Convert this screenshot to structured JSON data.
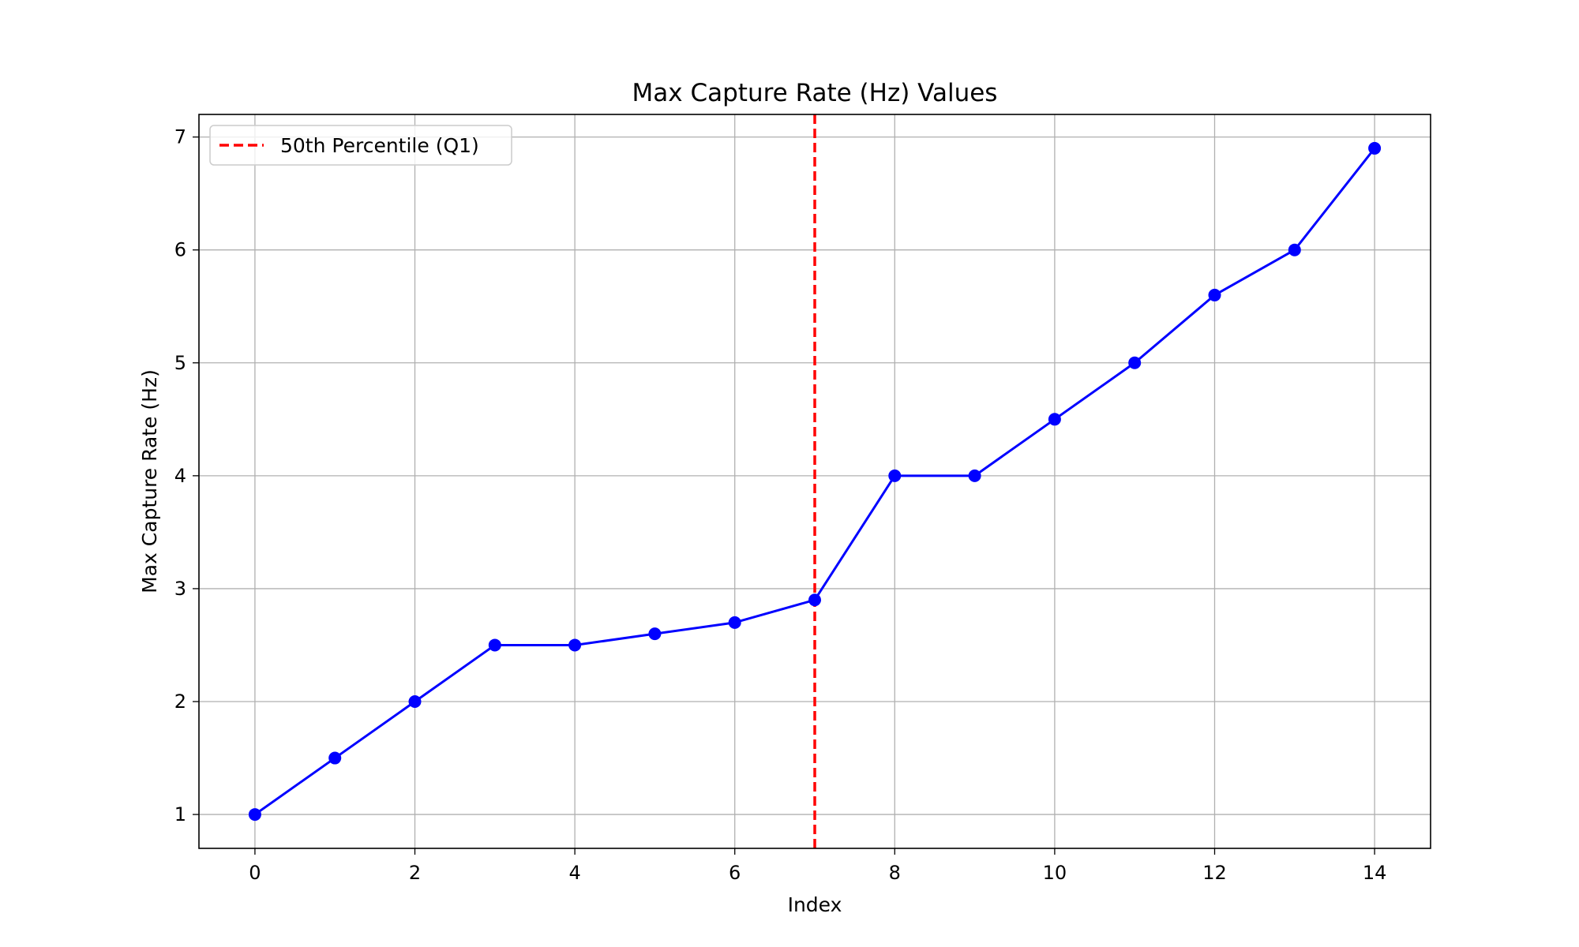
{
  "chart_data": {
    "type": "line",
    "title": "Max Capture Rate (Hz) Values",
    "xlabel": "Index",
    "ylabel": "Max Capture Rate (Hz)",
    "xlim": [
      -0.7,
      14.7
    ],
    "ylim": [
      0.7,
      7.2
    ],
    "xticks": [
      0,
      2,
      4,
      6,
      8,
      10,
      12,
      14
    ],
    "yticks": [
      1,
      2,
      3,
      4,
      5,
      6,
      7
    ],
    "grid": true,
    "legend_position": "top-left",
    "series": [
      {
        "color": "#0000ff",
        "marker": "circle",
        "x": [
          0,
          1,
          2,
          3,
          4,
          5,
          6,
          7,
          8,
          9,
          10,
          11,
          12,
          13,
          14
        ],
        "values": [
          1.0,
          1.5,
          2.0,
          2.5,
          2.5,
          2.6,
          2.7,
          2.9,
          4.0,
          4.0,
          4.5,
          5.0,
          5.6,
          6.0,
          6.9
        ]
      }
    ],
    "reference_lines": [
      {
        "orientation": "vertical",
        "x": 7,
        "name": "50th Percentile (Q1)",
        "color": "#ff0000",
        "style": "dashed"
      }
    ]
  }
}
